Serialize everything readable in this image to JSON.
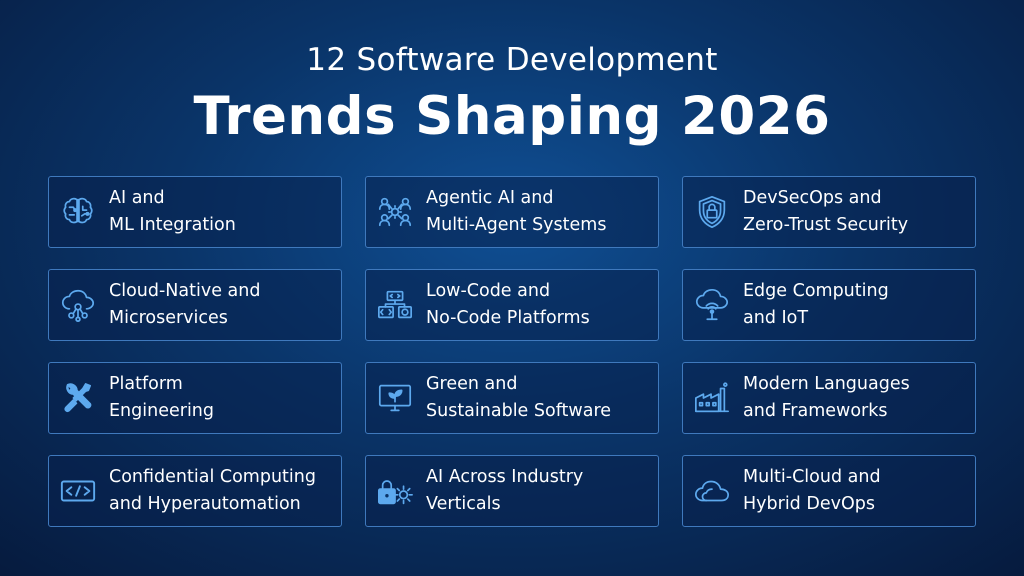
{
  "title": {
    "line1": "12 Software Development",
    "line2": "Trends Shaping 2026"
  },
  "colors": {
    "background": "#0a3468",
    "card_border": "#3f79bd",
    "icon": "#5da9ee"
  },
  "cards": [
    {
      "line1": "AI and",
      "line2": "ML Integration",
      "icon": "brain-circuit-icon"
    },
    {
      "line1": "Agentic AI and",
      "line2": "Multi-Agent Systems",
      "icon": "multi-agent-network-icon"
    },
    {
      "line1": "DevSecOps and",
      "line2": "Zero-Trust Security",
      "icon": "shield-lock-icon"
    },
    {
      "line1": "Cloud-Native and",
      "line2": "Microservices",
      "icon": "cloud-nodes-icon"
    },
    {
      "line1": "Low-Code and",
      "line2": "No-Code Platforms",
      "icon": "low-code-blocks-icon"
    },
    {
      "line1": "Edge Computing",
      "line2": "and IoT",
      "icon": "cloud-antenna-icon"
    },
    {
      "line1": "Platform",
      "line2": "Engineering",
      "icon": "wrench-screwdriver-icon"
    },
    {
      "line1": "Green and",
      "line2": "Sustainable Software",
      "icon": "monitor-leaf-icon"
    },
    {
      "line1": "Modern Languages",
      "line2": "and Frameworks",
      "icon": "factory-icon"
    },
    {
      "line1": "Confidential Computing",
      "line2": "and Hyperautomation",
      "icon": "code-brackets-icon"
    },
    {
      "line1": "AI Across Industry",
      "line2": "Verticals",
      "icon": "lock-gear-icon"
    },
    {
      "line1": "Multi-Cloud and",
      "line2": "Hybrid DevOps",
      "icon": "cloud-icon"
    }
  ]
}
